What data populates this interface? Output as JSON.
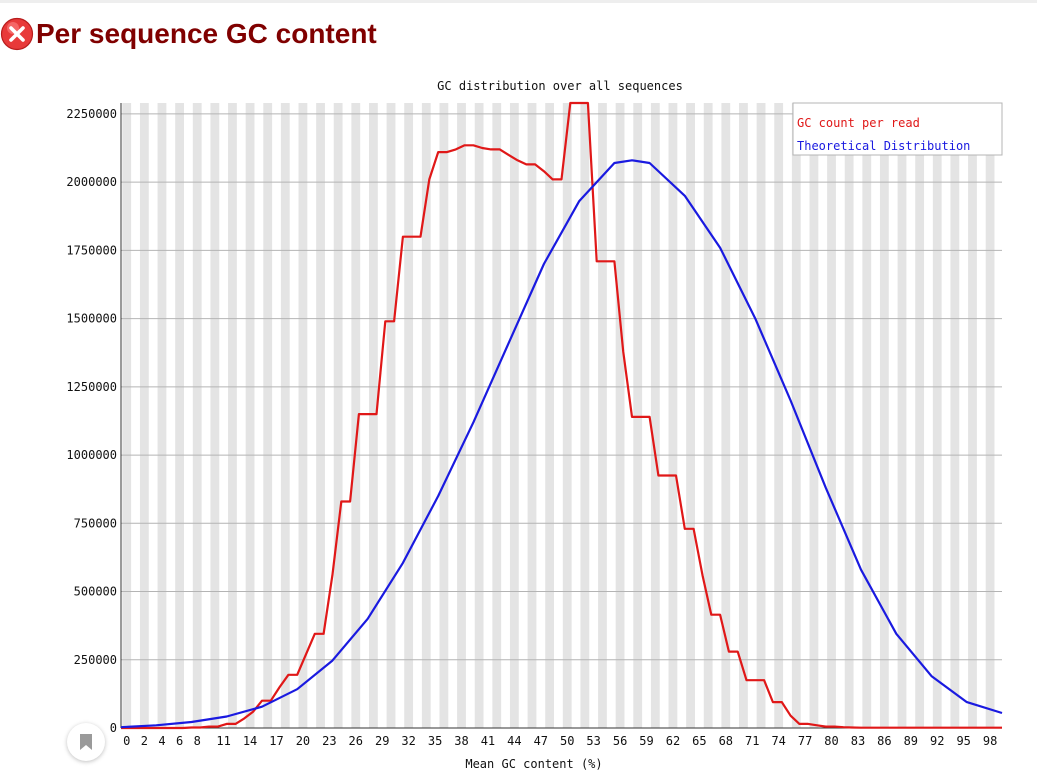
{
  "header": {
    "title": "Per sequence GC content",
    "status_icon": "error-icon"
  },
  "colors": {
    "title": "#800000",
    "error_icon": "#e83a3a",
    "observed": "#e01818",
    "theoretical": "#1a1ae0",
    "stripe": "#e4e4e4",
    "grid": "#b4b4b4"
  },
  "chart_data": {
    "type": "line",
    "title": "GC distribution over all sequences",
    "xlabel": "Mean GC content (%)",
    "ylabel": "",
    "xlim": [
      0,
      100
    ],
    "ylim": [
      0,
      2290000
    ],
    "y_ticks": [
      0,
      250000,
      500000,
      750000,
      1000000,
      1250000,
      1500000,
      1750000,
      2000000,
      2250000
    ],
    "y_tick_labels": [
      "0",
      "250000",
      "500000",
      "750000",
      "1000000",
      "1250000",
      "1500000",
      "1750000",
      "2000000",
      "2250000"
    ],
    "x_tick_labels": [
      "0",
      "2",
      "4",
      "6",
      "8",
      "11",
      "14",
      "17",
      "20",
      "23",
      "26",
      "29",
      "32",
      "35",
      "38",
      "41",
      "44",
      "47",
      "50",
      "53",
      "56",
      "59",
      "62",
      "65",
      "68",
      "71",
      "74",
      "77",
      "80",
      "83",
      "86",
      "89",
      "92",
      "95",
      "98"
    ],
    "x_tick_positions": [
      0,
      2,
      4,
      6,
      8,
      11,
      14,
      17,
      20,
      23,
      26,
      29,
      32,
      35,
      38,
      41,
      44,
      47,
      50,
      53,
      56,
      59,
      62,
      65,
      68,
      71,
      74,
      77,
      80,
      83,
      86,
      89,
      92,
      95,
      98
    ],
    "legend_position": "top-right",
    "series": [
      {
        "name": "GC count per read",
        "x": [
          0,
          1,
          2,
          3,
          4,
          5,
          6,
          7,
          8,
          9,
          10,
          11,
          12,
          13,
          14,
          15,
          16,
          17,
          18,
          19,
          20,
          21,
          22,
          23,
          24,
          25,
          26,
          27,
          28,
          29,
          30,
          31,
          32,
          33,
          34,
          35,
          36,
          37,
          38,
          39,
          40,
          41,
          42,
          43,
          44,
          45,
          46,
          47,
          48,
          49,
          50,
          51,
          52,
          53,
          54,
          55,
          56,
          57,
          58,
          59,
          60,
          61,
          62,
          63,
          64,
          65,
          66,
          67,
          68,
          69,
          70,
          71,
          72,
          73,
          74,
          75,
          76,
          77,
          78,
          79,
          80,
          81,
          82,
          83,
          84,
          85,
          86,
          87,
          88,
          89,
          90,
          91,
          92,
          93,
          94,
          95,
          96,
          97,
          98,
          99,
          100
        ],
        "values": [
          0,
          0,
          0,
          0,
          0,
          0,
          0,
          0,
          2000,
          2000,
          5000,
          5000,
          15000,
          15000,
          35000,
          60000,
          100000,
          100000,
          150000,
          195000,
          195000,
          270000,
          345000,
          345000,
          560000,
          830000,
          830000,
          1150000,
          1150000,
          1150000,
          1490000,
          1490000,
          1800000,
          1800000,
          1800000,
          2010000,
          2110000,
          2110000,
          2120000,
          2135000,
          2135000,
          2125000,
          2120000,
          2120000,
          2100000,
          2080000,
          2065000,
          2065000,
          2040000,
          2010000,
          2010000,
          2290000,
          2290000,
          2290000,
          1710000,
          1710000,
          1710000,
          1380000,
          1140000,
          1140000,
          1140000,
          925000,
          925000,
          925000,
          730000,
          730000,
          560000,
          415000,
          415000,
          280000,
          280000,
          175000,
          175000,
          175000,
          95000,
          95000,
          45000,
          15000,
          15000,
          10000,
          5000,
          5000,
          3000,
          2000,
          1000,
          1000,
          1000,
          1000,
          1000,
          1000,
          1000,
          1000,
          1000,
          1000,
          1000,
          1000,
          1000,
          1000,
          1000,
          1000,
          1000
        ],
        "color": "#e01818"
      },
      {
        "name": "Theoretical Distribution",
        "x": [
          0,
          4,
          8,
          12,
          16,
          20,
          24,
          28,
          32,
          36,
          40,
          44,
          48,
          52,
          56,
          58,
          60,
          64,
          68,
          72,
          76,
          80,
          84,
          88,
          92,
          96,
          100
        ],
        "values": [
          3000,
          10000,
          22000,
          42000,
          78000,
          142000,
          247000,
          400000,
          605000,
          850000,
          1120000,
          1410000,
          1700000,
          1930000,
          2070000,
          2080000,
          2070000,
          1950000,
          1760000,
          1500000,
          1200000,
          880000,
          580000,
          345000,
          190000,
          95000,
          55000
        ],
        "color": "#1a1ae0"
      }
    ]
  }
}
